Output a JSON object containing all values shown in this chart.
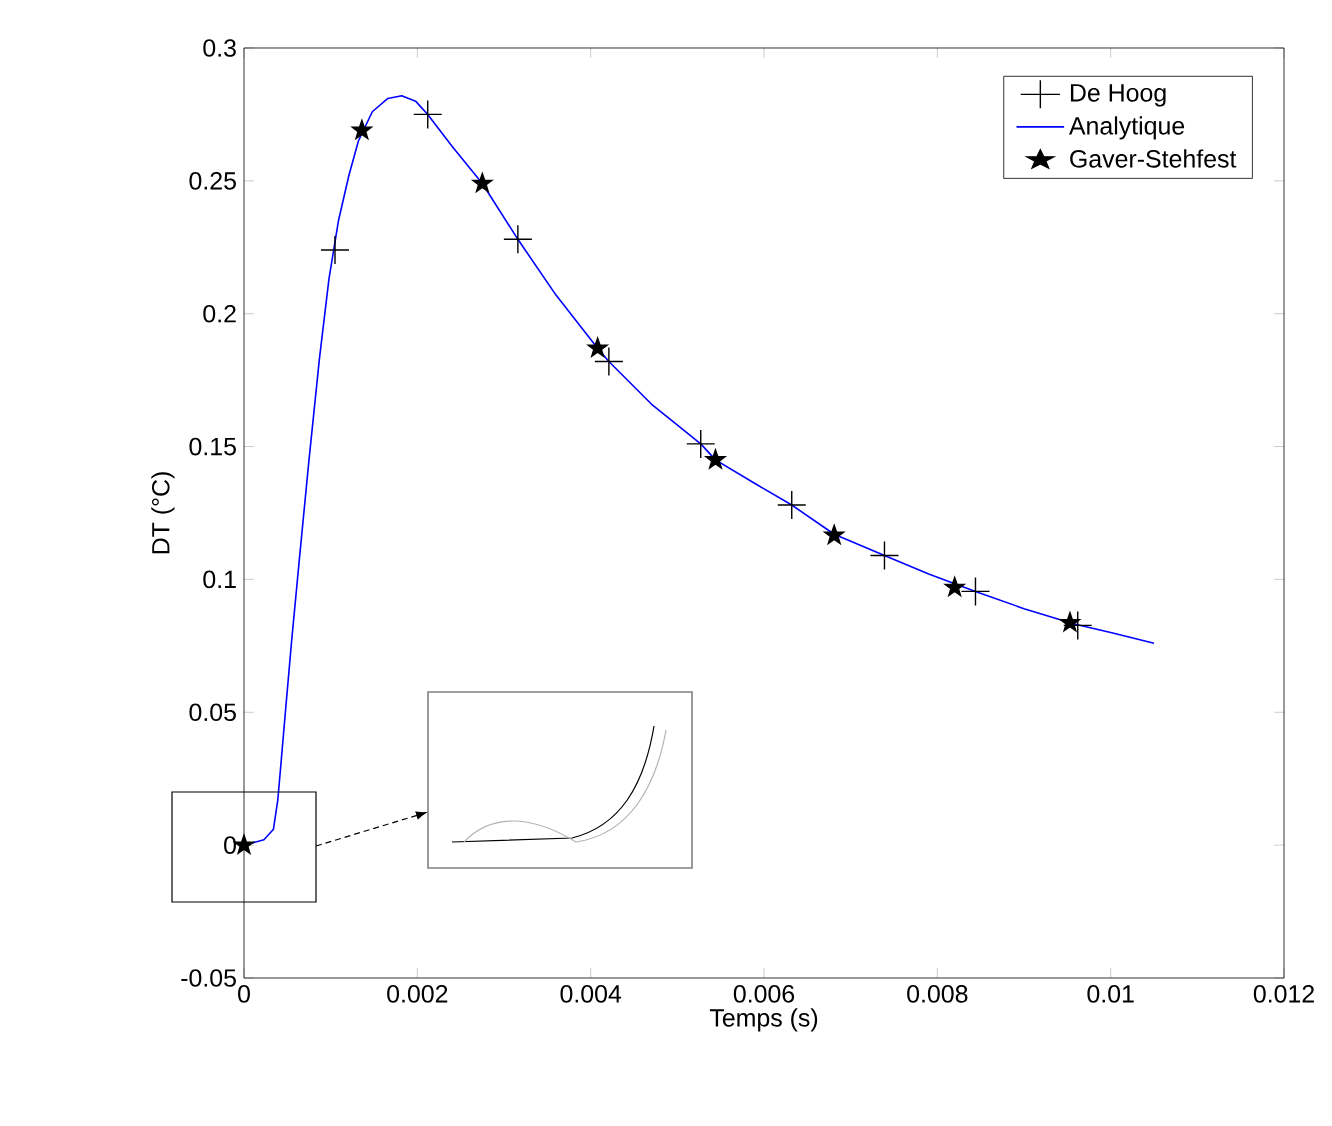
{
  "chart_data": {
    "type": "line",
    "xlabel": "Temps (s)",
    "ylabel": "DT (°C)",
    "xlim": [
      0,
      0.012
    ],
    "ylim": [
      -0.05,
      0.3
    ],
    "xticks": [
      0,
      0.002,
      0.004,
      0.006,
      0.008,
      0.01,
      0.012
    ],
    "yticks": [
      -0.05,
      0,
      0.05,
      0.1,
      0.15,
      0.2,
      0.25,
      0.3
    ],
    "grid": false,
    "legend": "top right",
    "series": [
      {
        "name": "De Hoog",
        "type": "scatter",
        "marker": "cross",
        "color": "#000000",
        "x": [
          0.00105,
          0.00212,
          0.00316,
          0.00421,
          0.00527,
          0.00632,
          0.00739,
          0.00844,
          0.00962
        ],
        "values": [
          0.224,
          0.275,
          0.228,
          0.182,
          0.151,
          0.128,
          0.109,
          0.0955,
          0.0827
        ]
      },
      {
        "name": "Analytique",
        "type": "line",
        "marker": "none",
        "line_style": "solid",
        "color": "#0000ff",
        "x": [
          0,
          0.00023,
          0.00034,
          0.00039,
          0.00043,
          0.00048,
          0.00055,
          0.00064,
          0.00075,
          0.00087,
          0.00098,
          0.00109,
          0.00121,
          0.00132,
          0.00148,
          0.00166,
          0.00182,
          0.00198,
          0.00212,
          0.0024,
          0.00275,
          0.00316,
          0.0036,
          0.00408,
          0.00421,
          0.0047,
          0.00527,
          0.00544,
          0.0059,
          0.00632,
          0.00681,
          0.00739,
          0.0079,
          0.00844,
          0.009,
          0.00958,
          0.01,
          0.0105
        ],
        "values": [
          0,
          0.002,
          0.006,
          0.017,
          0.032,
          0.051,
          0.077,
          0.108,
          0.145,
          0.183,
          0.213,
          0.235,
          0.252,
          0.265,
          0.276,
          0.281,
          0.282,
          0.28,
          0.275,
          0.263,
          0.249,
          0.228,
          0.207,
          0.187,
          0.182,
          0.166,
          0.151,
          0.145,
          0.136,
          0.128,
          0.117,
          0.109,
          0.102,
          0.0955,
          0.089,
          0.0832,
          0.08,
          0.076
        ]
      },
      {
        "name": "Gaver-Stehfest",
        "type": "scatter",
        "marker": "star",
        "color": "#000000",
        "x": [
          0,
          0.00136,
          0.00275,
          0.00408,
          0.00544,
          0.00681,
          0.0082,
          0.00953
        ],
        "values": [
          0,
          0.269,
          0.249,
          0.187,
          0.145,
          0.1166,
          0.097,
          0.0837
        ]
      }
    ]
  }
}
